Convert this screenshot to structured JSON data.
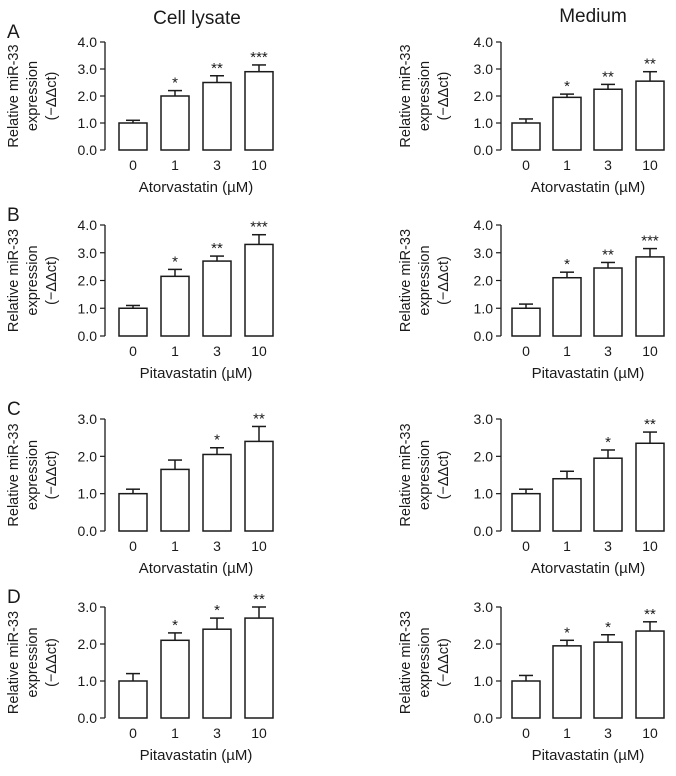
{
  "columns": [
    "Cell lysate",
    "Medium"
  ],
  "chart_data": [
    {
      "id": "A-lysate",
      "panel": "A",
      "column": "Cell lysate",
      "type": "bar",
      "categories": [
        "0",
        "1",
        "3",
        "10"
      ],
      "values": [
        1.0,
        2.0,
        2.5,
        2.9
      ],
      "errors": [
        0.1,
        0.2,
        0.25,
        0.25
      ],
      "significance": [
        "",
        "*",
        "**",
        "***"
      ],
      "xlabel": "Atorvastatin (µM)",
      "ylabel": [
        "Relative miR-33",
        "expression",
        "(−ΔΔct)"
      ],
      "ylim": [
        0,
        4
      ],
      "yticks": [
        "0.0",
        "1.0",
        "2.0",
        "3.0",
        "4.0"
      ]
    },
    {
      "id": "A-medium",
      "panel": "",
      "column": "Medium",
      "type": "bar",
      "categories": [
        "0",
        "1",
        "3",
        "10"
      ],
      "values": [
        1.0,
        1.95,
        2.25,
        2.55
      ],
      "errors": [
        0.15,
        0.12,
        0.18,
        0.35
      ],
      "significance": [
        "",
        "*",
        "**",
        "**"
      ],
      "xlabel": "Atorvastatin (µM)",
      "ylabel": [
        "Relative miR-33",
        "expression",
        "(−ΔΔct)"
      ],
      "ylim": [
        0,
        4
      ],
      "yticks": [
        "0.0",
        "1.0",
        "2.0",
        "3.0",
        "4.0"
      ]
    },
    {
      "id": "B-lysate",
      "panel": "B",
      "column": "Cell lysate",
      "type": "bar",
      "categories": [
        "0",
        "1",
        "3",
        "10"
      ],
      "values": [
        1.0,
        2.15,
        2.7,
        3.3
      ],
      "errors": [
        0.1,
        0.25,
        0.18,
        0.35
      ],
      "significance": [
        "",
        "*",
        "**",
        "***"
      ],
      "xlabel": "Pitavastatin (µM)",
      "ylabel": [
        "Relative miR-33",
        "expression",
        "(−ΔΔct)"
      ],
      "ylim": [
        0,
        4
      ],
      "yticks": [
        "0.0",
        "1.0",
        "2.0",
        "3.0",
        "4.0"
      ]
    },
    {
      "id": "B-medium",
      "panel": "",
      "column": "Medium",
      "type": "bar",
      "categories": [
        "0",
        "1",
        "3",
        "10"
      ],
      "values": [
        1.0,
        2.1,
        2.45,
        2.85
      ],
      "errors": [
        0.15,
        0.2,
        0.2,
        0.3
      ],
      "significance": [
        "",
        "*",
        "**",
        "***"
      ],
      "xlabel": "Pitavastatin (µM)",
      "ylabel": [
        "Relative miR-33",
        "expression",
        "(−ΔΔct)"
      ],
      "ylim": [
        0,
        4
      ],
      "yticks": [
        "0.0",
        "1.0",
        "2.0",
        "3.0",
        "4.0"
      ]
    },
    {
      "id": "C-lysate",
      "panel": "C",
      "column": "Cell lysate",
      "type": "bar",
      "categories": [
        "0",
        "1",
        "3",
        "10"
      ],
      "values": [
        1.0,
        1.65,
        2.05,
        2.4
      ],
      "errors": [
        0.12,
        0.25,
        0.18,
        0.4
      ],
      "significance": [
        "",
        "",
        "*",
        "**"
      ],
      "xlabel": "Atorvastatin (µM)",
      "ylabel": [
        "Relative miR-33",
        "expression",
        "(−ΔΔct)"
      ],
      "ylim": [
        0,
        3
      ],
      "yticks": [
        "0.0",
        "1.0",
        "2.0",
        "3.0"
      ]
    },
    {
      "id": "C-medium",
      "panel": "",
      "column": "Medium",
      "type": "bar",
      "categories": [
        "0",
        "1",
        "3",
        "10"
      ],
      "values": [
        1.0,
        1.4,
        1.95,
        2.35
      ],
      "errors": [
        0.12,
        0.2,
        0.22,
        0.3
      ],
      "significance": [
        "",
        "",
        "*",
        "**"
      ],
      "xlabel": "Atorvastatin (µM)",
      "ylabel": [
        "Relative miR-33",
        "expression",
        "(−ΔΔct)"
      ],
      "ylim": [
        0,
        3
      ],
      "yticks": [
        "0.0",
        "1.0",
        "2.0",
        "3.0"
      ]
    },
    {
      "id": "D-lysate",
      "panel": "D",
      "column": "Cell lysate",
      "type": "bar",
      "categories": [
        "0",
        "1",
        "3",
        "10"
      ],
      "values": [
        1.0,
        2.1,
        2.4,
        2.7
      ],
      "errors": [
        0.2,
        0.2,
        0.3,
        0.3
      ],
      "significance": [
        "",
        "*",
        "*",
        "**"
      ],
      "xlabel": "Pitavastatin (µM)",
      "ylabel": [
        "Relative miR-33",
        "expression",
        "(−ΔΔct)"
      ],
      "ylim": [
        0,
        3
      ],
      "yticks": [
        "0.0",
        "1.0",
        "2.0",
        "3.0"
      ]
    },
    {
      "id": "D-medium",
      "panel": "",
      "column": "Medium",
      "type": "bar",
      "categories": [
        "0",
        "1",
        "3",
        "10"
      ],
      "values": [
        1.0,
        1.95,
        2.05,
        2.35
      ],
      "errors": [
        0.15,
        0.15,
        0.2,
        0.25
      ],
      "significance": [
        "",
        "*",
        "*",
        "**"
      ],
      "xlabel": "Pitavastatin (µM)",
      "ylabel": [
        "Relative miR-33",
        "expression",
        "(−ΔΔct)"
      ],
      "ylim": [
        0,
        3
      ],
      "yticks": [
        "0.0",
        "1.0",
        "2.0",
        "3.0"
      ]
    }
  ]
}
